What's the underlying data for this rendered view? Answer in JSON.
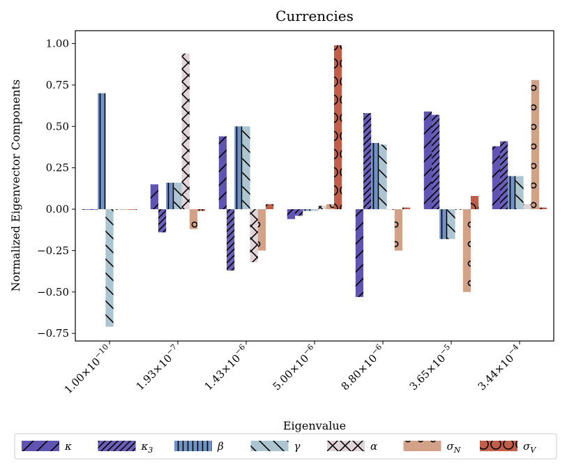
{
  "chart_data": {
    "type": "bar",
    "title": "Currencies",
    "xlabel": "Eigenvalue",
    "ylabel": "Normalized Eigenvector Components",
    "ylim": [
      -0.8,
      1.08
    ],
    "yticks": [
      "1.00",
      "0.75",
      "0.50",
      "0.25",
      "0.00",
      "−0.25",
      "−0.50",
      "−0.75"
    ],
    "categories": [
      {
        "mant": "1.00",
        "exp": "−10"
      },
      {
        "mant": "1.93",
        "exp": "−7"
      },
      {
        "mant": "1.43",
        "exp": "−6"
      },
      {
        "mant": "5.00",
        "exp": "−6"
      },
      {
        "mant": "8.80",
        "exp": "−6"
      },
      {
        "mant": "3.65",
        "exp": "−5"
      },
      {
        "mant": "3.44",
        "exp": "−4"
      }
    ],
    "legend_position": "bottom",
    "series": [
      {
        "name": "κ",
        "sub": "",
        "color": "#6054b2",
        "pattern": "slash-sparse",
        "values": [
          0.0,
          0.15,
          0.44,
          -0.06,
          -0.53,
          0.59,
          0.38
        ]
      },
      {
        "name": "κ",
        "sub": "3",
        "color": "#6a5fb8",
        "pattern": "slash-dense",
        "values": [
          0.0,
          -0.14,
          -0.37,
          -0.04,
          0.58,
          0.57,
          0.41
        ]
      },
      {
        "name": "β",
        "sub": "",
        "color": "#6f93c2",
        "pattern": "vertical",
        "values": [
          0.7,
          0.16,
          0.5,
          -0.01,
          0.4,
          -0.18,
          0.2
        ]
      },
      {
        "name": "γ",
        "sub": "",
        "color": "#adc5d0",
        "pattern": "backslash",
        "values": [
          -0.71,
          0.16,
          0.5,
          -0.01,
          0.39,
          -0.18,
          0.2
        ]
      },
      {
        "name": "α",
        "sub": "",
        "color": "#e0d4d8",
        "pattern": "cross",
        "values": [
          0.0,
          0.94,
          -0.32,
          0.02,
          0.0,
          0.0,
          0.03
        ]
      },
      {
        "name": "σ",
        "sub": "N",
        "color": "#d1a287",
        "pattern": "small-circles",
        "values": [
          0.0,
          -0.12,
          -0.25,
          0.03,
          -0.25,
          -0.5,
          0.78
        ]
      },
      {
        "name": "σ",
        "sub": "V",
        "color": "#c05e4a",
        "pattern": "big-circles",
        "values": [
          0.0,
          -0.01,
          0.03,
          0.99,
          0.01,
          0.08,
          0.01
        ]
      }
    ]
  }
}
